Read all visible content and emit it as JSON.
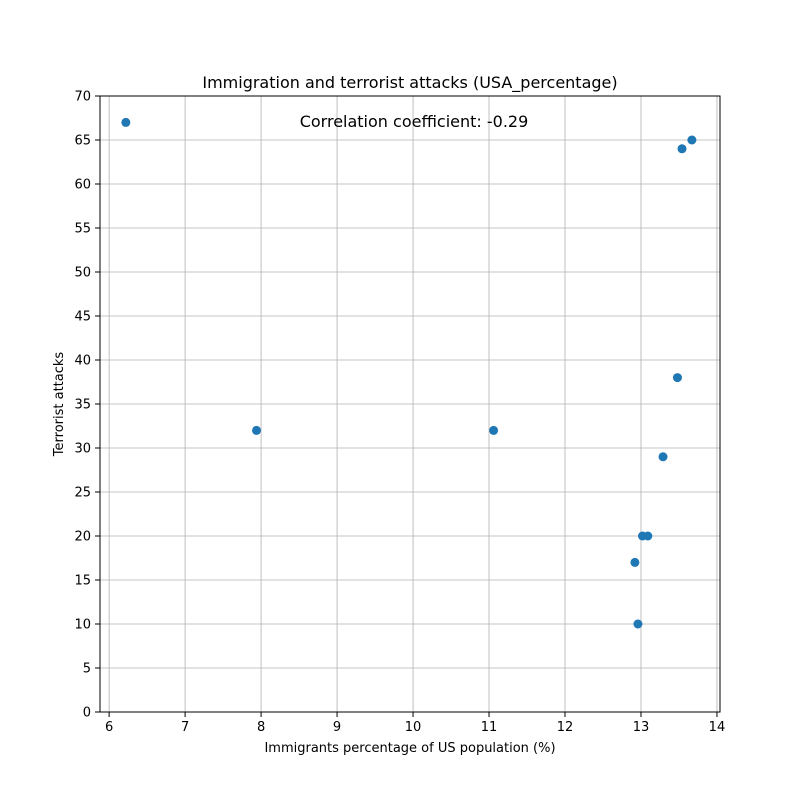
{
  "chart_data": {
    "type": "scatter",
    "title": "Immigration and terrorist attacks (USA_percentage)",
    "xlabel": "Immigrants percentage of US population (%)",
    "ylabel": "Terrorist attacks",
    "xlim": [
      5.88,
      14.04
    ],
    "ylim": [
      0,
      70
    ],
    "xticks": [
      6,
      7,
      8,
      9,
      10,
      11,
      12,
      13,
      14
    ],
    "yticks": [
      0,
      5,
      10,
      15,
      20,
      25,
      30,
      35,
      40,
      45,
      50,
      55,
      60,
      65,
      70
    ],
    "grid": true,
    "annotation": "Correlation coefficient: -0.29",
    "color": "#1f77b4",
    "series": [
      {
        "points": [
          {
            "x": 6.22,
            "y": 67
          },
          {
            "x": 7.94,
            "y": 32
          },
          {
            "x": 11.06,
            "y": 32
          },
          {
            "x": 12.92,
            "y": 17
          },
          {
            "x": 12.96,
            "y": 10
          },
          {
            "x": 13.02,
            "y": 20
          },
          {
            "x": 13.09,
            "y": 20
          },
          {
            "x": 13.29,
            "y": 29
          },
          {
            "x": 13.48,
            "y": 38
          },
          {
            "x": 13.54,
            "y": 64
          },
          {
            "x": 13.67,
            "y": 65
          }
        ]
      }
    ]
  }
}
